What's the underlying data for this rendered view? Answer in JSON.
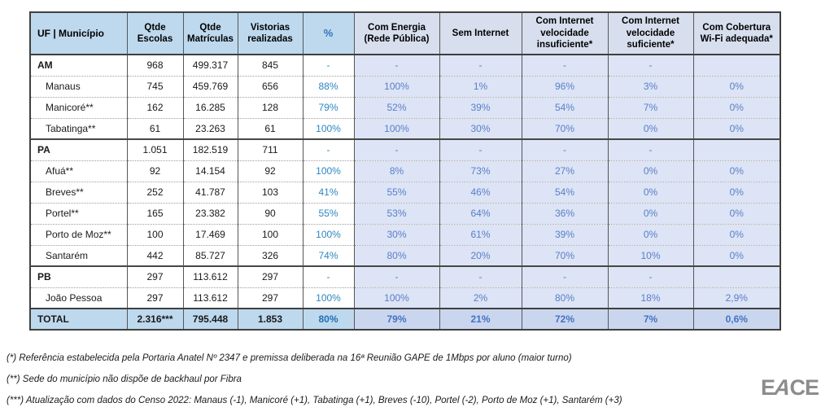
{
  "table": {
    "headers": [
      "UF | Município",
      "Qtde Escolas",
      "Qtde Matrículas",
      "Vistorias realizadas",
      "%",
      "Com Energia (Rede Pública)",
      "Sem Internet",
      "Com Internet velocidade insuficiente*",
      "Com Internet velocidade suficiente*",
      "Com Cobertura Wi-Fi adequada*"
    ],
    "rows": [
      {
        "id": "am",
        "type": "state",
        "group_start": true,
        "cells": [
          "AM",
          "968",
          "499.317",
          "845",
          "-",
          "-",
          "-",
          "-",
          "-",
          ""
        ]
      },
      {
        "id": "manaus",
        "type": "city",
        "group_start": false,
        "cells": [
          "Manaus",
          "745",
          "459.769",
          "656",
          "88%",
          "100%",
          "1%",
          "96%",
          "3%",
          "0%"
        ]
      },
      {
        "id": "manicore",
        "type": "city",
        "group_start": false,
        "cells": [
          "Manicoré**",
          "162",
          "16.285",
          "128",
          "79%",
          "52%",
          "39%",
          "54%",
          "7%",
          "0%"
        ]
      },
      {
        "id": "tabatinga",
        "type": "city",
        "group_start": false,
        "cells": [
          "Tabatinga**",
          "61",
          "23.263",
          "61",
          "100%",
          "100%",
          "30%",
          "70%",
          "0%",
          "0%"
        ]
      },
      {
        "id": "pa",
        "type": "state",
        "group_start": true,
        "cells": [
          "PA",
          "1.051",
          "182.519",
          "711",
          "-",
          "-",
          "-",
          "-",
          "-",
          ""
        ]
      },
      {
        "id": "afua",
        "type": "city",
        "group_start": false,
        "cells": [
          "Afuá**",
          "92",
          "14.154",
          "92",
          "100%",
          "8%",
          "73%",
          "27%",
          "0%",
          "0%"
        ]
      },
      {
        "id": "breves",
        "type": "city",
        "group_start": false,
        "cells": [
          "Breves**",
          "252",
          "41.787",
          "103",
          "41%",
          "55%",
          "46%",
          "54%",
          "0%",
          "0%"
        ]
      },
      {
        "id": "portel",
        "type": "city",
        "group_start": false,
        "cells": [
          "Portel**",
          "165",
          "23.382",
          "90",
          "55%",
          "53%",
          "64%",
          "36%",
          "0%",
          "0%"
        ]
      },
      {
        "id": "porto-de-moz",
        "type": "city",
        "group_start": false,
        "cells": [
          "Porto de Moz**",
          "100",
          "17.469",
          "100",
          "100%",
          "30%",
          "61%",
          "39%",
          "0%",
          "0%"
        ]
      },
      {
        "id": "santarem",
        "type": "city",
        "group_start": false,
        "cells": [
          "Santarém",
          "442",
          "85.727",
          "326",
          "74%",
          "80%",
          "20%",
          "70%",
          "10%",
          "0%"
        ]
      },
      {
        "id": "pb",
        "type": "state",
        "group_start": true,
        "cells": [
          "PB",
          "297",
          "113.612",
          "297",
          "-",
          "-",
          "-",
          "-",
          "-",
          ""
        ]
      },
      {
        "id": "joao-pessoa",
        "type": "city",
        "group_start": false,
        "cells": [
          "João Pessoa",
          "297",
          "113.612",
          "297",
          "100%",
          "100%",
          "2%",
          "80%",
          "18%",
          "2,9%"
        ]
      },
      {
        "id": "total",
        "type": "total",
        "group_start": true,
        "cells": [
          "TOTAL",
          "2.316***",
          "795.448",
          "1.853",
          "80%",
          "79%",
          "21%",
          "72%",
          "7%",
          "0,6%"
        ]
      }
    ]
  },
  "footnotes": [
    "(*) Referência estabelecida pela Portaria Anatel Nº 2347 e premissa deliberada na 16ª Reunião GAPE de 1Mbps por aluno (maior turno)",
    "(**) Sede do município não dispõe de backhaul por Fibra",
    "(***) Atualização com dados do Censo 2022: Manaus (-1), Manicoré (+1), Tabatinga (+1), Breves (-10), Portel (-2), Porto de Moz (+1), Santarém (+3)"
  ],
  "logo": {
    "text": "EACE",
    "color": "#8c8c8c"
  },
  "colors": {
    "header_bg": "#bed9ee",
    "header_shade_bg": "#d7dfee",
    "shade_column_bg": "#dce4f5",
    "total_row_bg": "#bed9ee",
    "pct_blue": "#2e86c1",
    "muted_blue": "#5b7ec9",
    "accent_blue": "#2e75b6"
  }
}
